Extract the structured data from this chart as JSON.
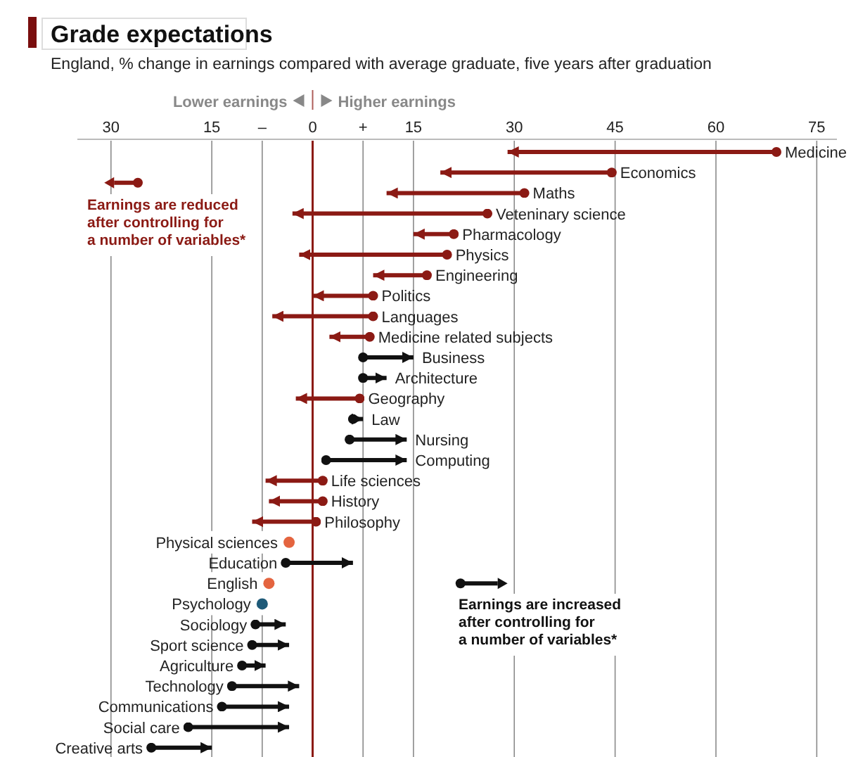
{
  "chart_data": {
    "type": "bar",
    "orientation": "horizontal",
    "title": "Grade expectations",
    "subtitle": "England, % change in earnings compared with average graduate, five years after graduation",
    "categories": [
      "Medicine",
      "Economics",
      "Maths",
      "Veteninary science",
      "Pharmacology",
      "Physics",
      "Engineering",
      "Politics",
      "Languages",
      "Medicine related subjects",
      "Business",
      "Architecture",
      "Geography",
      "Law",
      "Nursing",
      "Computing",
      "Life sciences",
      "History",
      "Philosophy",
      "Physical sciences",
      "Education",
      "English",
      "Psychology",
      "Sociology",
      "Sport science",
      "Agriculture",
      "Technology",
      "Communications",
      "Social care",
      "Creative arts"
    ],
    "series": [
      {
        "type": "bar",
        "base": [
          69,
          44.5,
          31.5,
          26,
          21,
          20,
          17,
          9,
          9,
          8.5,
          7.5,
          7.5,
          7,
          6,
          5.5,
          2,
          1.5,
          1.5,
          0.5,
          null,
          -4,
          null,
          null,
          -8.5,
          -9,
          -10.5,
          -12,
          -13.5,
          -18.5,
          -24
        ],
        "values": [
          -40,
          -25.5,
          -20.5,
          -29,
          -6,
          -22,
          -8,
          -9,
          -15,
          -6,
          7.5,
          3.5,
          -9.5,
          1.5,
          8.5,
          12,
          -8.5,
          -8,
          -9.5,
          null,
          10,
          null,
          null,
          4.5,
          5.5,
          3.5,
          10,
          10,
          15,
          9
        ],
        "colors": [
          "#8b1a14",
          "#8b1a14",
          "#8b1a14",
          "#8b1a14",
          "#8b1a14",
          "#8b1a14",
          "#8b1a14",
          "#8b1a14",
          "#8b1a14",
          "#8b1a14",
          "#111111",
          "#111111",
          "#8b1a14",
          "#111111",
          "#111111",
          "#111111",
          "#8b1a14",
          "#8b1a14",
          "#8b1a14",
          null,
          "#111111",
          null,
          null,
          "#111111",
          "#111111",
          "#111111",
          "#111111",
          "#111111",
          "#111111",
          "#111111"
        ]
      },
      {
        "type": "scatter",
        "values": [
          null,
          null,
          null,
          null,
          null,
          null,
          null,
          null,
          null,
          null,
          null,
          null,
          null,
          null,
          null,
          null,
          null,
          null,
          null,
          -3.5,
          null,
          -6.5,
          -7.5,
          null,
          null,
          null,
          null,
          null,
          null,
          null
        ],
        "colors": [
          null,
          null,
          null,
          null,
          null,
          null,
          null,
          null,
          null,
          null,
          null,
          null,
          null,
          null,
          null,
          null,
          null,
          null,
          null,
          "#e4643f",
          null,
          "#e4643f",
          "#1e5a78",
          null,
          null,
          null,
          null,
          null,
          null,
          null
        ]
      }
    ],
    "xlim": [
      -35,
      78
    ],
    "xticks": [
      {
        "value": -30,
        "label": "30"
      },
      {
        "value": -15,
        "label": "15"
      },
      {
        "value": -7.5,
        "label": "–"
      },
      0,
      {
        "value": 7.5,
        "label": "+"
      },
      15,
      30,
      45,
      60,
      75
    ],
    "grid": "x",
    "ref_lines": [
      {
        "axis": "x",
        "value": 0,
        "color": "#8b1a14"
      }
    ],
    "annotations": [
      "Lower earnings",
      "Higher earnings",
      "Earnings are reduced after controlling for a number of variables*",
      "Earnings are increased after controlling for a number of variables*"
    ]
  }
}
